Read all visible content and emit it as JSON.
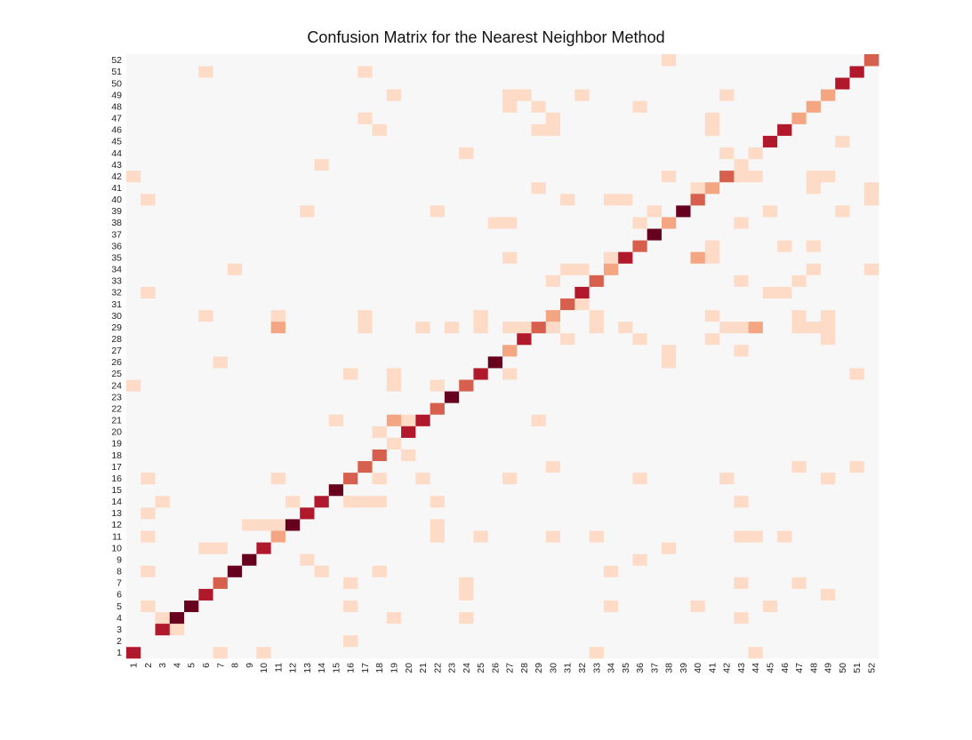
{
  "chart_data": {
    "type": "heatmap",
    "title": "Confusion Matrix for the Nearest Neighbor Method",
    "xlabel": "",
    "ylabel": "",
    "x_categories": [
      "1",
      "2",
      "3",
      "4",
      "5",
      "6",
      "7",
      "8",
      "9",
      "10",
      "11",
      "12",
      "13",
      "14",
      "15",
      "16",
      "17",
      "18",
      "19",
      "20",
      "21",
      "22",
      "23",
      "24",
      "25",
      "26",
      "27",
      "28",
      "29",
      "30",
      "31",
      "32",
      "33",
      "34",
      "35",
      "36",
      "37",
      "38",
      "39",
      "40",
      "41",
      "42",
      "43",
      "44",
      "45",
      "46",
      "47",
      "48",
      "49",
      "50",
      "51",
      "52"
    ],
    "y_categories": [
      "1",
      "2",
      "3",
      "4",
      "5",
      "6",
      "7",
      "8",
      "9",
      "10",
      "11",
      "12",
      "13",
      "14",
      "15",
      "16",
      "17",
      "18",
      "19",
      "20",
      "21",
      "22",
      "23",
      "24",
      "25",
      "26",
      "27",
      "28",
      "29",
      "30",
      "31",
      "32",
      "33",
      "34",
      "35",
      "36",
      "37",
      "38",
      "39",
      "40",
      "41",
      "42",
      "43",
      "44",
      "45",
      "46",
      "47",
      "48",
      "49",
      "50",
      "51",
      "52"
    ],
    "value_scale": "relative intensity 0-1 (no colorbar shown)",
    "diagonal": [
      0.8,
      0,
      0.8,
      1,
      1,
      0.8,
      0.6,
      1,
      1,
      0.8,
      0.4,
      1,
      0.8,
      0.8,
      1,
      0.6,
      0.6,
      0.6,
      0.1,
      0.8,
      0.8,
      0.6,
      1,
      0.6,
      0.8,
      1,
      0.4,
      0.8,
      0.6,
      0.4,
      0.6,
      0.8,
      0.6,
      0.4,
      0.8,
      0.6,
      1,
      0.4,
      1,
      0.6,
      0.4,
      0.6,
      0.1,
      0.1,
      0.8,
      0.8,
      0.4,
      0.4,
      0.4,
      0.8,
      0.8,
      0.6
    ],
    "off_diagonal": [
      {
        "x": 7,
        "y": 1,
        "v": 0.1
      },
      {
        "x": 10,
        "y": 1,
        "v": 0.1
      },
      {
        "x": 33,
        "y": 1,
        "v": 0.1
      },
      {
        "x": 44,
        "y": 1,
        "v": 0.1
      },
      {
        "x": 16,
        "y": 2,
        "v": 0.1
      },
      {
        "x": 4,
        "y": 3,
        "v": 0.1
      },
      {
        "x": 3,
        "y": 4,
        "v": 0.1
      },
      {
        "x": 19,
        "y": 4,
        "v": 0.1
      },
      {
        "x": 24,
        "y": 4,
        "v": 0.1
      },
      {
        "x": 43,
        "y": 4,
        "v": 0.1
      },
      {
        "x": 2,
        "y": 5,
        "v": 0.1
      },
      {
        "x": 16,
        "y": 5,
        "v": 0.1
      },
      {
        "x": 34,
        "y": 5,
        "v": 0.1
      },
      {
        "x": 40,
        "y": 5,
        "v": 0.1
      },
      {
        "x": 45,
        "y": 5,
        "v": 0.1
      },
      {
        "x": 24,
        "y": 6,
        "v": 0.1
      },
      {
        "x": 49,
        "y": 6,
        "v": 0.1
      },
      {
        "x": 16,
        "y": 7,
        "v": 0.1
      },
      {
        "x": 24,
        "y": 7,
        "v": 0.1
      },
      {
        "x": 43,
        "y": 7,
        "v": 0.1
      },
      {
        "x": 47,
        "y": 7,
        "v": 0.1
      },
      {
        "x": 2,
        "y": 8,
        "v": 0.1
      },
      {
        "x": 14,
        "y": 8,
        "v": 0.1
      },
      {
        "x": 18,
        "y": 8,
        "v": 0.1
      },
      {
        "x": 34,
        "y": 8,
        "v": 0.1
      },
      {
        "x": 13,
        "y": 9,
        "v": 0.1
      },
      {
        "x": 36,
        "y": 9,
        "v": 0.1
      },
      {
        "x": 6,
        "y": 10,
        "v": 0.1
      },
      {
        "x": 7,
        "y": 10,
        "v": 0.1
      },
      {
        "x": 38,
        "y": 10,
        "v": 0.1
      },
      {
        "x": 2,
        "y": 11,
        "v": 0.1
      },
      {
        "x": 22,
        "y": 11,
        "v": 0.1
      },
      {
        "x": 25,
        "y": 11,
        "v": 0.1
      },
      {
        "x": 30,
        "y": 11,
        "v": 0.1
      },
      {
        "x": 33,
        "y": 11,
        "v": 0.1
      },
      {
        "x": 43,
        "y": 11,
        "v": 0.1
      },
      {
        "x": 44,
        "y": 11,
        "v": 0.1
      },
      {
        "x": 46,
        "y": 11,
        "v": 0.1
      },
      {
        "x": 9,
        "y": 12,
        "v": 0.1
      },
      {
        "x": 10,
        "y": 12,
        "v": 0.1
      },
      {
        "x": 11,
        "y": 12,
        "v": 0.1
      },
      {
        "x": 22,
        "y": 12,
        "v": 0.1
      },
      {
        "x": 2,
        "y": 13,
        "v": 0.1
      },
      {
        "x": 3,
        "y": 14,
        "v": 0.1
      },
      {
        "x": 12,
        "y": 14,
        "v": 0.1
      },
      {
        "x": 16,
        "y": 14,
        "v": 0.1
      },
      {
        "x": 17,
        "y": 14,
        "v": 0.1
      },
      {
        "x": 18,
        "y": 14,
        "v": 0.1
      },
      {
        "x": 22,
        "y": 14,
        "v": 0.1
      },
      {
        "x": 43,
        "y": 14,
        "v": 0.1
      },
      {
        "x": 2,
        "y": 16,
        "v": 0.1
      },
      {
        "x": 11,
        "y": 16,
        "v": 0.1
      },
      {
        "x": 18,
        "y": 16,
        "v": 0.1
      },
      {
        "x": 21,
        "y": 16,
        "v": 0.1
      },
      {
        "x": 27,
        "y": 16,
        "v": 0.1
      },
      {
        "x": 36,
        "y": 16,
        "v": 0.1
      },
      {
        "x": 42,
        "y": 16,
        "v": 0.1
      },
      {
        "x": 49,
        "y": 16,
        "v": 0.1
      },
      {
        "x": 30,
        "y": 17,
        "v": 0.1
      },
      {
        "x": 47,
        "y": 17,
        "v": 0.1
      },
      {
        "x": 51,
        "y": 17,
        "v": 0.1
      },
      {
        "x": 20,
        "y": 18,
        "v": 0.1
      },
      {
        "x": 18,
        "y": 20,
        "v": 0.1
      },
      {
        "x": 15,
        "y": 21,
        "v": 0.1
      },
      {
        "x": 19,
        "y": 21,
        "v": 0.4
      },
      {
        "x": 20,
        "y": 21,
        "v": 0.1
      },
      {
        "x": 29,
        "y": 21,
        "v": 0.1
      },
      {
        "x": 1,
        "y": 24,
        "v": 0.1
      },
      {
        "x": 19,
        "y": 24,
        "v": 0.1
      },
      {
        "x": 22,
        "y": 24,
        "v": 0.1
      },
      {
        "x": 16,
        "y": 25,
        "v": 0.1
      },
      {
        "x": 19,
        "y": 25,
        "v": 0.1
      },
      {
        "x": 27,
        "y": 25,
        "v": 0.1
      },
      {
        "x": 51,
        "y": 25,
        "v": 0.1
      },
      {
        "x": 7,
        "y": 26,
        "v": 0.1
      },
      {
        "x": 38,
        "y": 26,
        "v": 0.1
      },
      {
        "x": 38,
        "y": 27,
        "v": 0.1
      },
      {
        "x": 43,
        "y": 27,
        "v": 0.1
      },
      {
        "x": 31,
        "y": 28,
        "v": 0.1
      },
      {
        "x": 36,
        "y": 28,
        "v": 0.1
      },
      {
        "x": 41,
        "y": 28,
        "v": 0.1
      },
      {
        "x": 49,
        "y": 28,
        "v": 0.1
      },
      {
        "x": 11,
        "y": 29,
        "v": 0.4
      },
      {
        "x": 17,
        "y": 29,
        "v": 0.1
      },
      {
        "x": 21,
        "y": 29,
        "v": 0.1
      },
      {
        "x": 23,
        "y": 29,
        "v": 0.1
      },
      {
        "x": 25,
        "y": 29,
        "v": 0.1
      },
      {
        "x": 27,
        "y": 29,
        "v": 0.1
      },
      {
        "x": 28,
        "y": 29,
        "v": 0.1
      },
      {
        "x": 30,
        "y": 29,
        "v": 0.1
      },
      {
        "x": 33,
        "y": 29,
        "v": 0.1
      },
      {
        "x": 35,
        "y": 29,
        "v": 0.1
      },
      {
        "x": 42,
        "y": 29,
        "v": 0.1
      },
      {
        "x": 43,
        "y": 29,
        "v": 0.1
      },
      {
        "x": 44,
        "y": 29,
        "v": 0.4
      },
      {
        "x": 47,
        "y": 29,
        "v": 0.1
      },
      {
        "x": 48,
        "y": 29,
        "v": 0.1
      },
      {
        "x": 49,
        "y": 29,
        "v": 0.1
      },
      {
        "x": 6,
        "y": 30,
        "v": 0.1
      },
      {
        "x": 11,
        "y": 30,
        "v": 0.1
      },
      {
        "x": 17,
        "y": 30,
        "v": 0.1
      },
      {
        "x": 25,
        "y": 30,
        "v": 0.1
      },
      {
        "x": 33,
        "y": 30,
        "v": 0.1
      },
      {
        "x": 41,
        "y": 30,
        "v": 0.1
      },
      {
        "x": 47,
        "y": 30,
        "v": 0.1
      },
      {
        "x": 49,
        "y": 30,
        "v": 0.1
      },
      {
        "x": 32,
        "y": 31,
        "v": 0.1
      },
      {
        "x": 2,
        "y": 32,
        "v": 0.1
      },
      {
        "x": 45,
        "y": 32,
        "v": 0.1
      },
      {
        "x": 46,
        "y": 32,
        "v": 0.1
      },
      {
        "x": 30,
        "y": 33,
        "v": 0.1
      },
      {
        "x": 43,
        "y": 33,
        "v": 0.1
      },
      {
        "x": 47,
        "y": 33,
        "v": 0.1
      },
      {
        "x": 8,
        "y": 34,
        "v": 0.1
      },
      {
        "x": 31,
        "y": 34,
        "v": 0.1
      },
      {
        "x": 32,
        "y": 34,
        "v": 0.1
      },
      {
        "x": 48,
        "y": 34,
        "v": 0.1
      },
      {
        "x": 52,
        "y": 34,
        "v": 0.1
      },
      {
        "x": 27,
        "y": 35,
        "v": 0.1
      },
      {
        "x": 34,
        "y": 35,
        "v": 0.1
      },
      {
        "x": 40,
        "y": 35,
        "v": 0.4
      },
      {
        "x": 41,
        "y": 35,
        "v": 0.1
      },
      {
        "x": 41,
        "y": 36,
        "v": 0.1
      },
      {
        "x": 46,
        "y": 36,
        "v": 0.1
      },
      {
        "x": 48,
        "y": 36,
        "v": 0.1
      },
      {
        "x": 26,
        "y": 38,
        "v": 0.1
      },
      {
        "x": 27,
        "y": 38,
        "v": 0.1
      },
      {
        "x": 36,
        "y": 38,
        "v": 0.1
      },
      {
        "x": 43,
        "y": 38,
        "v": 0.1
      },
      {
        "x": 13,
        "y": 39,
        "v": 0.1
      },
      {
        "x": 22,
        "y": 39,
        "v": 0.1
      },
      {
        "x": 37,
        "y": 39,
        "v": 0.1
      },
      {
        "x": 45,
        "y": 39,
        "v": 0.1
      },
      {
        "x": 50,
        "y": 39,
        "v": 0.1
      },
      {
        "x": 2,
        "y": 40,
        "v": 0.1
      },
      {
        "x": 31,
        "y": 40,
        "v": 0.1
      },
      {
        "x": 34,
        "y": 40,
        "v": 0.1
      },
      {
        "x": 35,
        "y": 40,
        "v": 0.1
      },
      {
        "x": 52,
        "y": 40,
        "v": 0.1
      },
      {
        "x": 29,
        "y": 41,
        "v": 0.1
      },
      {
        "x": 40,
        "y": 41,
        "v": 0.1
      },
      {
        "x": 48,
        "y": 41,
        "v": 0.1
      },
      {
        "x": 52,
        "y": 41,
        "v": 0.1
      },
      {
        "x": 1,
        "y": 42,
        "v": 0.1
      },
      {
        "x": 38,
        "y": 42,
        "v": 0.1
      },
      {
        "x": 43,
        "y": 42,
        "v": 0.1
      },
      {
        "x": 44,
        "y": 42,
        "v": 0.1
      },
      {
        "x": 48,
        "y": 42,
        "v": 0.1
      },
      {
        "x": 49,
        "y": 42,
        "v": 0.1
      },
      {
        "x": 14,
        "y": 43,
        "v": 0.1
      },
      {
        "x": 24,
        "y": 44,
        "v": 0.1
      },
      {
        "x": 42,
        "y": 44,
        "v": 0.1
      },
      {
        "x": 44,
        "y": 44,
        "v": 0.1
      },
      {
        "x": 50,
        "y": 45,
        "v": 0.1
      },
      {
        "x": 18,
        "y": 46,
        "v": 0.1
      },
      {
        "x": 29,
        "y": 46,
        "v": 0.1
      },
      {
        "x": 30,
        "y": 46,
        "v": 0.1
      },
      {
        "x": 41,
        "y": 46,
        "v": 0.1
      },
      {
        "x": 17,
        "y": 47,
        "v": 0.1
      },
      {
        "x": 30,
        "y": 47,
        "v": 0.1
      },
      {
        "x": 41,
        "y": 47,
        "v": 0.1
      },
      {
        "x": 27,
        "y": 48,
        "v": 0.1
      },
      {
        "x": 29,
        "y": 48,
        "v": 0.1
      },
      {
        "x": 36,
        "y": 48,
        "v": 0.1
      },
      {
        "x": 19,
        "y": 49,
        "v": 0.1
      },
      {
        "x": 27,
        "y": 49,
        "v": 0.1
      },
      {
        "x": 28,
        "y": 49,
        "v": 0.1
      },
      {
        "x": 32,
        "y": 49,
        "v": 0.1
      },
      {
        "x": 42,
        "y": 49,
        "v": 0.1
      },
      {
        "x": 6,
        "y": 51,
        "v": 0.1
      },
      {
        "x": 17,
        "y": 51,
        "v": 0.1
      },
      {
        "x": 38,
        "y": 52,
        "v": 0.1
      }
    ],
    "colormap": {
      "background": "#f7f7f7",
      "stops": [
        {
          "v": 0.1,
          "color": "#fddbc7"
        },
        {
          "v": 0.4,
          "color": "#f4a582"
        },
        {
          "v": 0.6,
          "color": "#d6604d"
        },
        {
          "v": 0.8,
          "color": "#b2182b"
        },
        {
          "v": 1.0,
          "color": "#67001f"
        }
      ]
    },
    "legend": "none",
    "grid": false
  }
}
